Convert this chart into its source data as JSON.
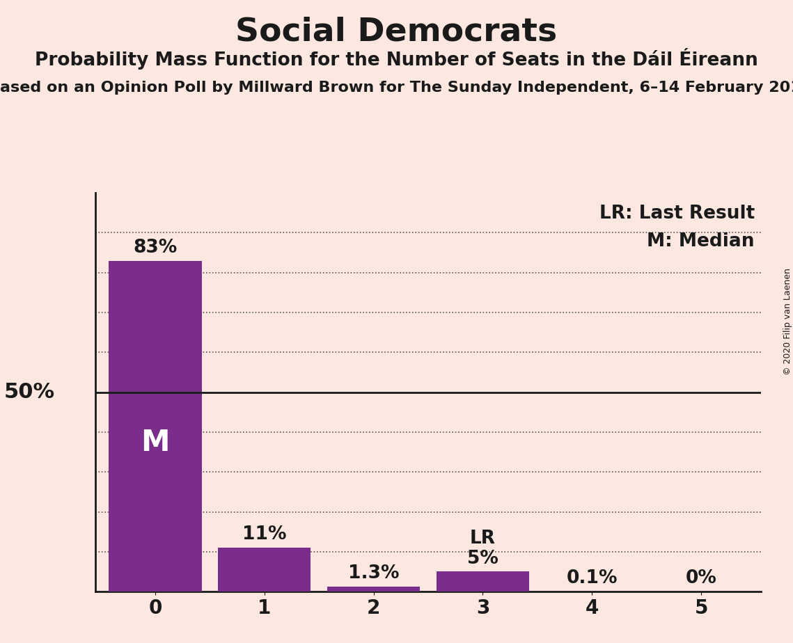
{
  "title": "Social Democrats",
  "subtitle": "Probability Mass Function for the Number of Seats in the Dáil Éireann",
  "source_line": "ased on an Opinion Poll by Millward Brown for The Sunday Independent, 6–14 February 201",
  "copyright": "© 2020 Filip van Laenen",
  "categories": [
    0,
    1,
    2,
    3,
    4,
    5
  ],
  "values": [
    0.83,
    0.11,
    0.013,
    0.05,
    0.001,
    0.0
  ],
  "labels": [
    "83%",
    "11%",
    "1.3%",
    "5%",
    "0.1%",
    "0%"
  ],
  "bar_color": "#7b2d8b",
  "background_color": "#fce8e0",
  "label_50pct": "50%",
  "median_bar": 0,
  "median_label": "M",
  "lr_bar": 3,
  "lr_label": "LR",
  "legend_lr": "LR: Last Result",
  "legend_m": "M: Median",
  "title_fontsize": 34,
  "subtitle_fontsize": 19,
  "source_fontsize": 16,
  "label_fontsize": 19,
  "tick_fontsize": 20,
  "ylabel_fontsize": 22,
  "legend_fontsize": 19,
  "median_fontsize": 30,
  "copyright_fontsize": 9,
  "ylim": [
    0,
    1.0
  ],
  "xlim": [
    -0.55,
    5.55
  ],
  "grid_levels": [
    0.1,
    0.2,
    0.3,
    0.4,
    0.6,
    0.7,
    0.8,
    0.9
  ],
  "solid_line_y": 0.5,
  "bar_width": 0.85
}
